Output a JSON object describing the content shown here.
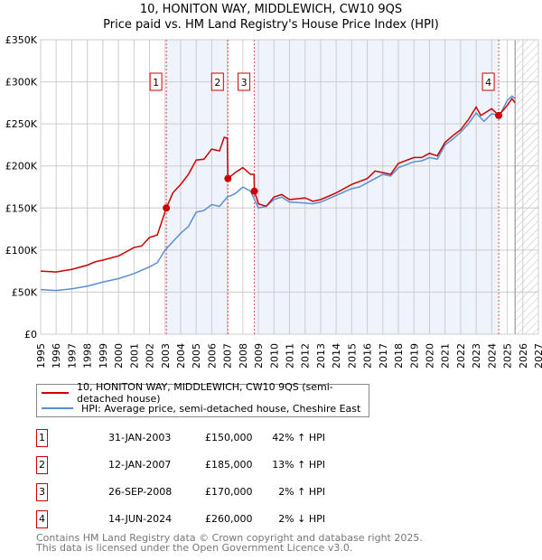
{
  "chart_data": {
    "type": "line",
    "title": "10, HONITON WAY, MIDDLEWICH, CW10 9QS",
    "subtitle": "Price paid vs. HM Land Registry's House Price Index (HPI)",
    "xlim": [
      1995,
      2027
    ],
    "ylim": [
      0,
      350000
    ],
    "yticks": [
      {
        "v": 0,
        "label": "£0"
      },
      {
        "v": 50000,
        "label": "£50K"
      },
      {
        "v": 100000,
        "label": "£100K"
      },
      {
        "v": 150000,
        "label": "£150K"
      },
      {
        "v": 200000,
        "label": "£200K"
      },
      {
        "v": 250000,
        "label": "£250K"
      },
      {
        "v": 300000,
        "label": "£300K"
      },
      {
        "v": 350000,
        "label": "£350K"
      }
    ],
    "xticks": [
      "1995",
      "1996",
      "1997",
      "1998",
      "1999",
      "2000",
      "2001",
      "2002",
      "2003",
      "2004",
      "2005",
      "2006",
      "2007",
      "2008",
      "2009",
      "2010",
      "2011",
      "2012",
      "2013",
      "2014",
      "2015",
      "2016",
      "2017",
      "2018",
      "2019",
      "2020",
      "2021",
      "2022",
      "2023",
      "2024",
      "2025",
      "2026",
      "2027"
    ],
    "grid": true,
    "forecast_start": 2025.5,
    "shaded_ranges": [
      [
        2003.08,
        2007.04
      ],
      [
        2008.74,
        2024.45
      ]
    ],
    "series": [
      {
        "name": "10, HONITON WAY, MIDDLEWICH, CW10 9QS (semi-detached house)",
        "color": "#cc0000",
        "x": [
          1995,
          1996,
          1997,
          1998,
          1998.5,
          1999,
          2000,
          2001,
          2001.5,
          2002,
          2002.5,
          2003.08,
          2003.5,
          2004,
          2004.5,
          2005,
          2005.5,
          2006,
          2006.5,
          2006.8,
          2007.0,
          2007.04,
          2007.5,
          2008,
          2008.5,
          2008.72,
          2008.74,
          2009,
          2009.5,
          2010,
          2010.5,
          2011,
          2012,
          2012.5,
          2013,
          2014,
          2015,
          2016,
          2016.5,
          2017,
          2017.5,
          2018,
          2019,
          2019.5,
          2020,
          2020.5,
          2021,
          2021.5,
          2022,
          2022.5,
          2023,
          2023.3,
          2024,
          2024.45,
          2025,
          2025.3,
          2025.5
        ],
        "y": [
          75000,
          74000,
          77000,
          82000,
          86000,
          88000,
          93000,
          103000,
          105000,
          115000,
          118000,
          150000,
          168000,
          178000,
          190000,
          207000,
          208000,
          220000,
          218000,
          234000,
          233000,
          185000,
          192000,
          198000,
          190000,
          190000,
          170000,
          155000,
          152000,
          163000,
          166000,
          160000,
          162000,
          158000,
          160000,
          168000,
          178000,
          185000,
          194000,
          192000,
          190000,
          203000,
          210000,
          210000,
          215000,
          212000,
          228000,
          236000,
          243000,
          255000,
          270000,
          260000,
          268000,
          260000,
          272000,
          280000,
          275000
        ]
      },
      {
        "name": "HPI: Average price, semi-detached house, Cheshire East",
        "color": "#5b8fd4",
        "x": [
          1995,
          1996,
          1997,
          1998,
          1999,
          2000,
          2001,
          2002,
          2002.5,
          2003,
          2003.5,
          2004,
          2004.5,
          2005,
          2005.5,
          2006,
          2006.5,
          2007,
          2007.5,
          2008,
          2008.5,
          2009,
          2009.5,
          2010,
          2010.5,
          2011,
          2012,
          2012.5,
          2013,
          2014,
          2015,
          2015.5,
          2016,
          2016.5,
          2017,
          2017.5,
          2018,
          2019,
          2019.5,
          2020,
          2020.5,
          2021,
          2021.5,
          2022,
          2022.5,
          2023,
          2023.5,
          2024,
          2024.5,
          2025,
          2025.3,
          2025.5
        ],
        "y": [
          53000,
          52000,
          54000,
          57000,
          62000,
          66000,
          72000,
          80000,
          85000,
          100000,
          110000,
          120000,
          128000,
          145000,
          147000,
          154000,
          152000,
          163000,
          167000,
          175000,
          170000,
          150000,
          152000,
          160000,
          163000,
          157000,
          156000,
          155000,
          157000,
          165000,
          173000,
          175000,
          180000,
          185000,
          190000,
          188000,
          198000,
          205000,
          206000,
          210000,
          208000,
          225000,
          232000,
          240000,
          250000,
          263000,
          253000,
          262000,
          260000,
          278000,
          283000,
          280000
        ]
      }
    ],
    "sales": [
      {
        "n": "1",
        "x": 2003.08,
        "y": 150000,
        "date": "31-JAN-2003",
        "price": "£150,000",
        "hpi": "42% ↑ HPI"
      },
      {
        "n": "2",
        "x": 2007.04,
        "y": 185000,
        "date": "12-JAN-2007",
        "price": "£185,000",
        "hpi": "13% ↑ HPI"
      },
      {
        "n": "3",
        "x": 2008.74,
        "y": 170000,
        "date": "26-SEP-2008",
        "price": "£170,000",
        "hpi": "2% ↑ HPI"
      },
      {
        "n": "4",
        "x": 2024.45,
        "y": 260000,
        "date": "14-JUN-2024",
        "price": "£260,000",
        "hpi": "2% ↓ HPI"
      }
    ]
  },
  "footer": {
    "line1": "Contains HM Land Registry data © Crown copyright and database right 2025.",
    "line2": "This data is licensed under the Open Government Licence v3.0."
  }
}
